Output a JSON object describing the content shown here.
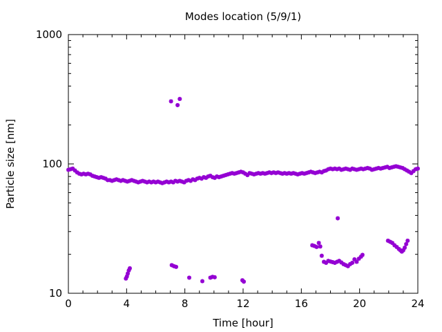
{
  "chart_data": {
    "type": "scatter",
    "title": "Modes location (5/9/1)",
    "xlabel": "Time [hour]",
    "ylabel": "Particle size [nm]",
    "xlim": [
      0,
      24
    ],
    "ylim": [
      10,
      1000
    ],
    "yscale": "log",
    "grid": false,
    "legend": "none",
    "marker_color": "#9400d3",
    "x_ticks": [
      0,
      4,
      8,
      12,
      16,
      20,
      24
    ],
    "x_tick_labels": [
      "0",
      "4",
      "8",
      "12",
      "16",
      "20",
      "24"
    ],
    "y_ticks": [
      10,
      100,
      1000
    ],
    "y_tick_labels": [
      "10",
      "100",
      "1000"
    ],
    "main_mode_points": [
      [
        0.0,
        90
      ],
      [
        0.15,
        91
      ],
      [
        0.3,
        92
      ],
      [
        0.45,
        89
      ],
      [
        0.6,
        86
      ],
      [
        0.75,
        84
      ],
      [
        0.9,
        83
      ],
      [
        1.05,
        84
      ],
      [
        1.2,
        83
      ],
      [
        1.35,
        84
      ],
      [
        1.5,
        83
      ],
      [
        1.65,
        81
      ],
      [
        1.8,
        80
      ],
      [
        1.95,
        79
      ],
      [
        2.1,
        78
      ],
      [
        2.25,
        79
      ],
      [
        2.4,
        78
      ],
      [
        2.55,
        77
      ],
      [
        2.7,
        75
      ],
      [
        2.85,
        75
      ],
      [
        3.0,
        74
      ],
      [
        3.15,
        75
      ],
      [
        3.3,
        76
      ],
      [
        3.45,
        75
      ],
      [
        3.6,
        74
      ],
      [
        3.75,
        75
      ],
      [
        3.9,
        74
      ],
      [
        4.05,
        73
      ],
      [
        4.2,
        74
      ],
      [
        4.35,
        75
      ],
      [
        4.5,
        74
      ],
      [
        4.65,
        73
      ],
      [
        4.8,
        72
      ],
      [
        4.95,
        73
      ],
      [
        5.1,
        74
      ],
      [
        5.25,
        73
      ],
      [
        5.4,
        72
      ],
      [
        5.55,
        73
      ],
      [
        5.7,
        72
      ],
      [
        5.85,
        73
      ],
      [
        6.0,
        72
      ],
      [
        6.15,
        73
      ],
      [
        6.3,
        72
      ],
      [
        6.45,
        71
      ],
      [
        6.6,
        72
      ],
      [
        6.75,
        73
      ],
      [
        6.9,
        72
      ],
      [
        7.05,
        73
      ],
      [
        7.2,
        72
      ],
      [
        7.35,
        74
      ],
      [
        7.5,
        73
      ],
      [
        7.65,
        74
      ],
      [
        7.8,
        73
      ],
      [
        7.95,
        72
      ],
      [
        8.1,
        74
      ],
      [
        8.25,
        75
      ],
      [
        8.4,
        74
      ],
      [
        8.55,
        76
      ],
      [
        8.7,
        75
      ],
      [
        8.85,
        77
      ],
      [
        9.0,
        78
      ],
      [
        9.15,
        77
      ],
      [
        9.3,
        79
      ],
      [
        9.45,
        78
      ],
      [
        9.6,
        80
      ],
      [
        9.75,
        81
      ],
      [
        9.9,
        79
      ],
      [
        10.05,
        78
      ],
      [
        10.2,
        80
      ],
      [
        10.35,
        79
      ],
      [
        10.5,
        80
      ],
      [
        10.65,
        81
      ],
      [
        10.8,
        82
      ],
      [
        10.95,
        83
      ],
      [
        11.1,
        84
      ],
      [
        11.25,
        85
      ],
      [
        11.4,
        84
      ],
      [
        11.55,
        85
      ],
      [
        11.7,
        86
      ],
      [
        11.85,
        87
      ],
      [
        12.0,
        86
      ],
      [
        12.15,
        84
      ],
      [
        12.3,
        82
      ],
      [
        12.45,
        85
      ],
      [
        12.6,
        84
      ],
      [
        12.75,
        83
      ],
      [
        12.9,
        84
      ],
      [
        13.05,
        85
      ],
      [
        13.2,
        84
      ],
      [
        13.35,
        85
      ],
      [
        13.5,
        84
      ],
      [
        13.65,
        85
      ],
      [
        13.8,
        86
      ],
      [
        13.95,
        85
      ],
      [
        14.1,
        86
      ],
      [
        14.25,
        85
      ],
      [
        14.4,
        86
      ],
      [
        14.55,
        85
      ],
      [
        14.7,
        84
      ],
      [
        14.85,
        85
      ],
      [
        15.0,
        84
      ],
      [
        15.15,
        85
      ],
      [
        15.3,
        84
      ],
      [
        15.45,
        85
      ],
      [
        15.6,
        84
      ],
      [
        15.75,
        83
      ],
      [
        15.9,
        84
      ],
      [
        16.05,
        85
      ],
      [
        16.2,
        84
      ],
      [
        16.35,
        85
      ],
      [
        16.5,
        86
      ],
      [
        16.65,
        87
      ],
      [
        16.8,
        86
      ],
      [
        16.95,
        85
      ],
      [
        17.1,
        86
      ],
      [
        17.25,
        87
      ],
      [
        17.4,
        86
      ],
      [
        17.55,
        88
      ],
      [
        17.7,
        89
      ],
      [
        17.85,
        91
      ],
      [
        18.0,
        92
      ],
      [
        18.15,
        91
      ],
      [
        18.3,
        92
      ],
      [
        18.45,
        91
      ],
      [
        18.6,
        92
      ],
      [
        18.75,
        90
      ],
      [
        18.9,
        91
      ],
      [
        19.05,
        92
      ],
      [
        19.2,
        91
      ],
      [
        19.35,
        90
      ],
      [
        19.5,
        92
      ],
      [
        19.65,
        91
      ],
      [
        19.8,
        90
      ],
      [
        19.95,
        91
      ],
      [
        20.1,
        92
      ],
      [
        20.25,
        91
      ],
      [
        20.4,
        92
      ],
      [
        20.55,
        93
      ],
      [
        20.7,
        92
      ],
      [
        20.85,
        90
      ],
      [
        21.0,
        91
      ],
      [
        21.15,
        92
      ],
      [
        21.3,
        93
      ],
      [
        21.45,
        92
      ],
      [
        21.6,
        93
      ],
      [
        21.75,
        94
      ],
      [
        21.9,
        95
      ],
      [
        22.05,
        93
      ],
      [
        22.2,
        94
      ],
      [
        22.35,
        95
      ],
      [
        22.5,
        96
      ],
      [
        22.65,
        95
      ],
      [
        22.8,
        94
      ],
      [
        22.95,
        93
      ],
      [
        23.1,
        91
      ],
      [
        23.25,
        89
      ],
      [
        23.4,
        87
      ],
      [
        23.55,
        85
      ],
      [
        23.7,
        88
      ],
      [
        23.85,
        91
      ],
      [
        24.0,
        92
      ]
    ],
    "secondary_points": [
      [
        7.05,
        305
      ],
      [
        7.5,
        285
      ],
      [
        7.65,
        318
      ],
      [
        3.95,
        13
      ],
      [
        4.02,
        13.5
      ],
      [
        4.08,
        14.2
      ],
      [
        4.15,
        15
      ],
      [
        4.22,
        15.6
      ],
      [
        7.1,
        16.5
      ],
      [
        7.25,
        16.2
      ],
      [
        7.4,
        16
      ],
      [
        8.3,
        13.2
      ],
      [
        9.2,
        12.4
      ],
      [
        9.75,
        13.2
      ],
      [
        9.9,
        13.4
      ],
      [
        10.05,
        13.3
      ],
      [
        11.95,
        12.6
      ],
      [
        12.05,
        12.3
      ],
      [
        16.75,
        23.5
      ],
      [
        16.9,
        23.2
      ],
      [
        17.05,
        22.8
      ],
      [
        17.2,
        24.5
      ],
      [
        17.3,
        23
      ],
      [
        17.4,
        19.5
      ],
      [
        17.55,
        17.5
      ],
      [
        17.7,
        17.2
      ],
      [
        17.85,
        17.8
      ],
      [
        18.0,
        17.6
      ],
      [
        18.15,
        17.4
      ],
      [
        18.3,
        17.2
      ],
      [
        18.45,
        17.5
      ],
      [
        18.6,
        17.8
      ],
      [
        18.75,
        17.3
      ],
      [
        18.9,
        16.8
      ],
      [
        19.05,
        16.5
      ],
      [
        19.2,
        16.2
      ],
      [
        19.35,
        16.8
      ],
      [
        19.5,
        17.2
      ],
      [
        19.65,
        18.3
      ],
      [
        19.8,
        17.5
      ],
      [
        19.95,
        18.5
      ],
      [
        20.1,
        19.2
      ],
      [
        20.2,
        19.8
      ],
      [
        18.5,
        38
      ],
      [
        21.95,
        25.5
      ],
      [
        22.1,
        25
      ],
      [
        22.25,
        24.5
      ],
      [
        22.4,
        23.5
      ],
      [
        22.55,
        22.8
      ],
      [
        22.7,
        22
      ],
      [
        22.8,
        21.5
      ],
      [
        22.9,
        21
      ],
      [
        23.0,
        21.5
      ],
      [
        23.1,
        22.5
      ],
      [
        23.2,
        24
      ],
      [
        23.3,
        25.5
      ]
    ]
  }
}
